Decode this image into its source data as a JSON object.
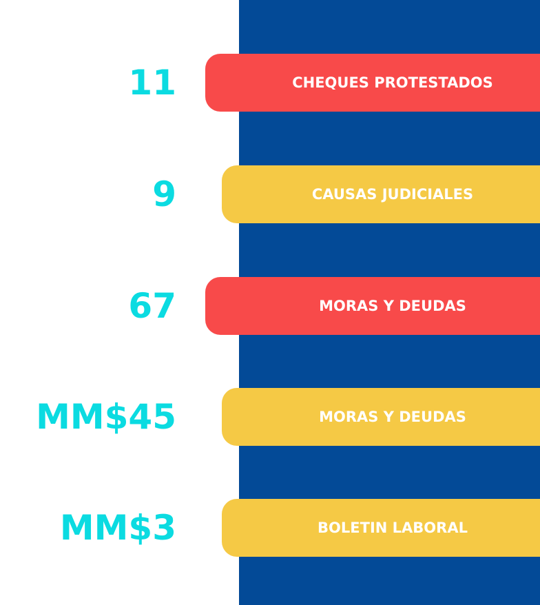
{
  "items": [
    {
      "value": "11",
      "label": "CHEQUES PROTESTADOS",
      "color": "#f84a4a"
    },
    {
      "value": "9",
      "label": "CAUSAS JUDICIALES",
      "color": "#f5c945"
    },
    {
      "value": "67",
      "label": "MORAS Y DEUDAS",
      "color": "#f84a4a"
    },
    {
      "value": "MM$45",
      "label": "MORAS Y DEUDAS",
      "color": "#f5c945"
    },
    {
      "value": "MM$3",
      "label": "BOLETIN LABORAL",
      "color": "#f5c945"
    }
  ]
}
